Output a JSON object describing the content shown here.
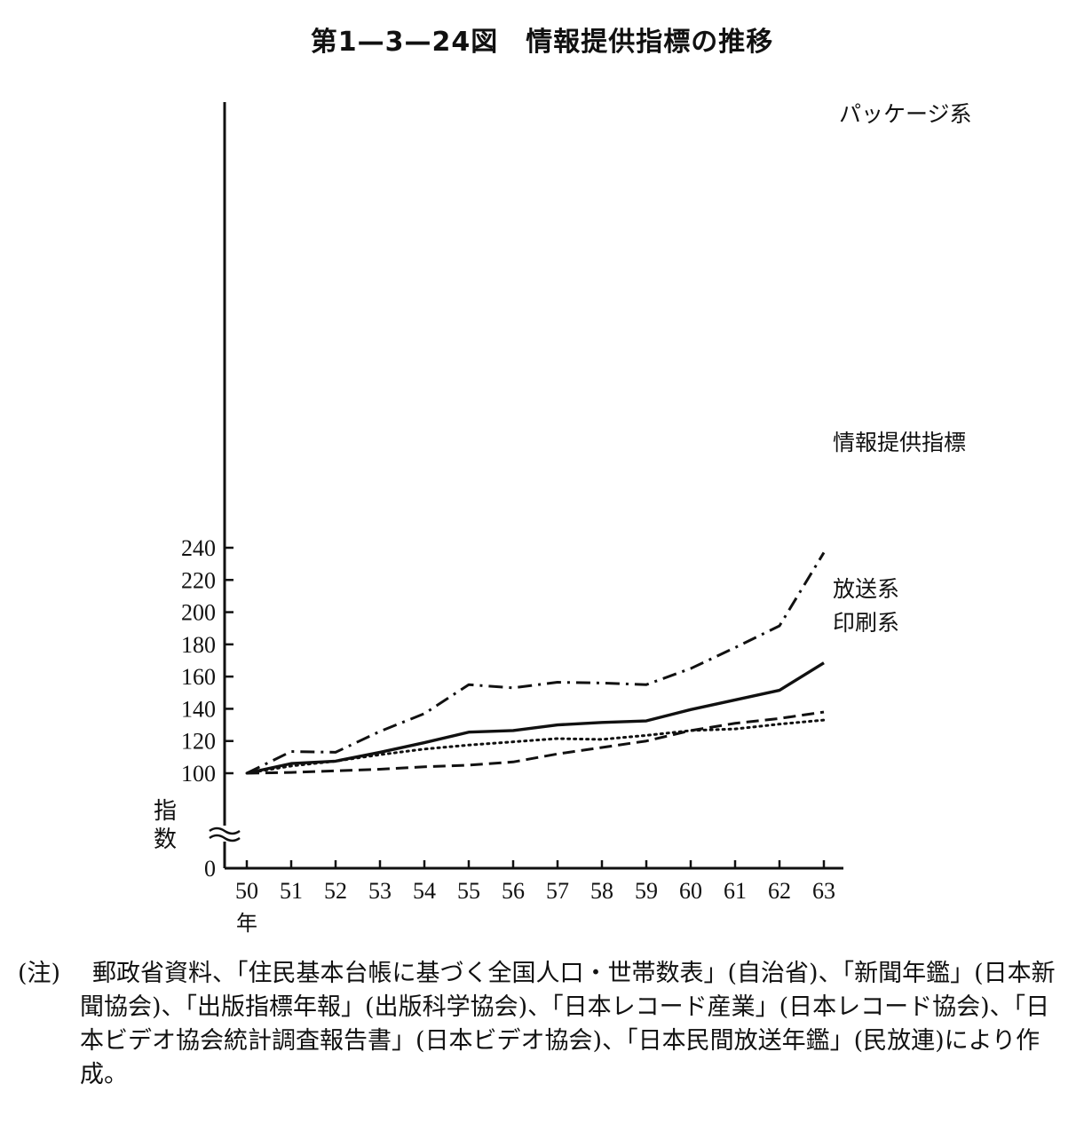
{
  "title": "第1—3—24図　情報提供指標の推移",
  "chart_data": {
    "type": "line",
    "title": "第1—3—24図　情報提供指標の推移",
    "ylabel": "指数",
    "xlabel": "年",
    "x": [
      "50",
      "51",
      "52",
      "53",
      "54",
      "55",
      "56",
      "57",
      "58",
      "59",
      "60",
      "61",
      "62",
      "63"
    ],
    "yticks": [
      "0",
      "100",
      "120",
      "140",
      "160",
      "180",
      "200",
      "220",
      "240"
    ],
    "ylim": [
      100,
      240
    ],
    "axis_break": true,
    "grid": false,
    "series": [
      {
        "name": "パッケージ系",
        "style": "dash-dot",
        "values": [
          100,
          113.5,
          113,
          126,
          137,
          155,
          153,
          156.5,
          156,
          155,
          165,
          178,
          191.5,
          237
        ]
      },
      {
        "name": "情報提供指標",
        "style": "solid",
        "values": [
          100,
          106,
          107.5,
          113,
          119,
          125.5,
          126.5,
          130,
          131.5,
          132.5,
          139.5,
          145.5,
          151.5,
          168.5
        ]
      },
      {
        "name": "放送系",
        "style": "dashed",
        "values": [
          100,
          100.5,
          101.5,
          102.5,
          104,
          105,
          107,
          112,
          116,
          120,
          126.5,
          131,
          134,
          138
        ]
      },
      {
        "name": "印刷系",
        "style": "dotted",
        "values": [
          100,
          104.5,
          107.5,
          111.5,
          115,
          117.5,
          119.5,
          121.5,
          121,
          123.5,
          126.5,
          127.5,
          130.5,
          133
        ]
      }
    ]
  },
  "note": {
    "label": "(注)",
    "text": "郵政省資料、「住民基本台帳に基づく全国人口・世帯数表」(自治省)、「新聞年鑑」(日本新聞協会)、「出版指標年報」(出版科学協会)、「日本レコード産業」(日本レコード協会)、「日本ビデオ協会統計調査報告書」(日本ビデオ協会)、「日本民間放送年鑑」(民放連)により作成。"
  }
}
